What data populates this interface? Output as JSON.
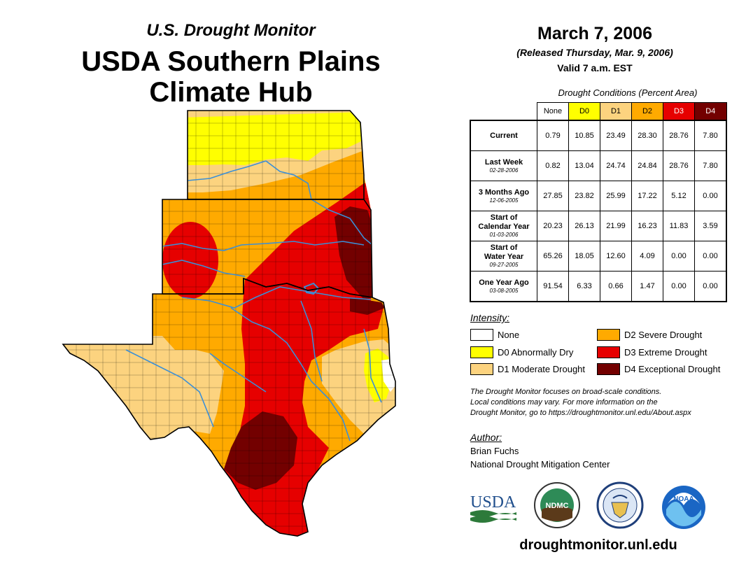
{
  "header": {
    "supertitle": "U.S. Drought Monitor",
    "title_line1": "USDA Southern Plains",
    "title_line2": "Climate Hub"
  },
  "date_block": {
    "date": "March 7, 2006",
    "released": "(Released Thursday, Mar. 9, 2006)",
    "valid": "Valid 7 a.m. EST"
  },
  "table": {
    "caption": "Drought Conditions (Percent Area)",
    "columns": [
      {
        "label": "None",
        "color": "#ffffff",
        "text_color": "#000000"
      },
      {
        "label": "D0",
        "color": "#ffff00",
        "text_color": "#000000"
      },
      {
        "label": "D1",
        "color": "#fcd37f",
        "text_color": "#000000"
      },
      {
        "label": "D2",
        "color": "#ffaa00",
        "text_color": "#000000"
      },
      {
        "label": "D3",
        "color": "#e60000",
        "text_color": "#ffffff"
      },
      {
        "label": "D4",
        "color": "#730000",
        "text_color": "#ffffff"
      }
    ],
    "rows": [
      {
        "label": "Current",
        "label2": "",
        "date": "",
        "values": [
          "0.79",
          "10.85",
          "23.49",
          "28.30",
          "28.76",
          "7.80"
        ]
      },
      {
        "label": "Last Week",
        "label2": "",
        "date": "02-28-2006",
        "values": [
          "0.82",
          "13.04",
          "24.74",
          "24.84",
          "28.76",
          "7.80"
        ]
      },
      {
        "label": "3 Months Ago",
        "label2": "",
        "date": "12-06-2005",
        "values": [
          "27.85",
          "23.82",
          "25.99",
          "17.22",
          "5.12",
          "0.00"
        ]
      },
      {
        "label": "Start of",
        "label2": "Calendar Year",
        "date": "01-03-2006",
        "values": [
          "20.23",
          "26.13",
          "21.99",
          "16.23",
          "11.83",
          "3.59"
        ]
      },
      {
        "label": "Start of",
        "label2": "Water Year",
        "date": "09-27-2005",
        "values": [
          "65.26",
          "18.05",
          "12.60",
          "4.09",
          "0.00",
          "0.00"
        ]
      },
      {
        "label": "One Year Ago",
        "label2": "",
        "date": "03-08-2005",
        "values": [
          "91.54",
          "6.33",
          "0.66",
          "1.47",
          "0.00",
          "0.00"
        ]
      }
    ]
  },
  "legend": {
    "title": "Intensity:",
    "items": [
      {
        "label": "None",
        "color": "#ffffff"
      },
      {
        "label": "D0 Abnormally Dry",
        "color": "#ffff00"
      },
      {
        "label": "D1 Moderate Drought",
        "color": "#fcd37f"
      },
      {
        "label": "D2 Severe Drought",
        "color": "#ffaa00"
      },
      {
        "label": "D3 Extreme Drought",
        "color": "#e60000"
      },
      {
        "label": "D4 Exceptional Drought",
        "color": "#730000"
      }
    ]
  },
  "note": {
    "line1": "The Drought Monitor focuses on broad-scale conditions.",
    "line2": "Local conditions may vary. For more information on the",
    "line3": "Drought Monitor, go to https://droughtmonitor.unl.edu/About.aspx"
  },
  "author": {
    "title": "Author:",
    "name": "Brian Fuchs",
    "org": "National Drought Mitigation Center"
  },
  "logos": {
    "usda": "USDA",
    "ndmc": "NDMC",
    "noaa": "NOAA"
  },
  "website": "droughtmonitor.unl.edu",
  "map": {
    "states": [
      "Kansas",
      "Oklahoma",
      "Texas"
    ],
    "colors": {
      "d0": "#ffff00",
      "d1": "#fcd37f",
      "d2": "#ffaa00",
      "d3": "#e60000",
      "d4": "#730000",
      "none": "#ffffff",
      "river": "#3b8fd6",
      "border": "#000000"
    }
  }
}
